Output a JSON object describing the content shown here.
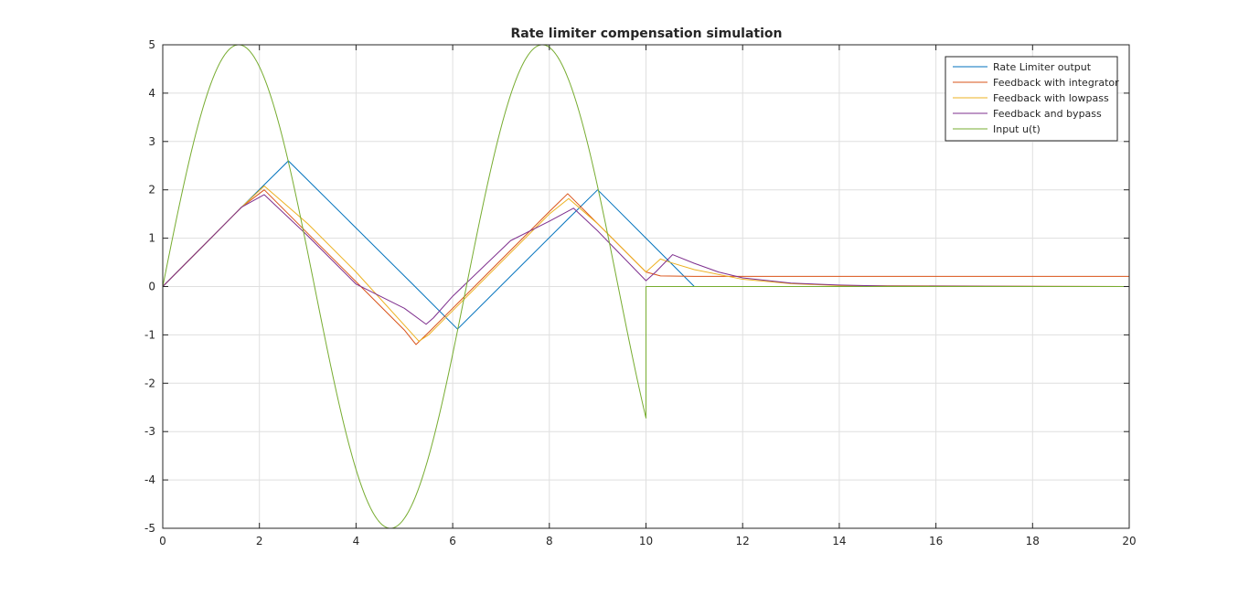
{
  "chart_data": {
    "type": "line",
    "title": "Rate limiter compensation simulation",
    "xlabel": "",
    "ylabel": "",
    "xlim": [
      0,
      20
    ],
    "ylim": [
      -5,
      5
    ],
    "grid": true,
    "legend_position": "top-right",
    "xticks": [
      0,
      2,
      4,
      6,
      8,
      10,
      12,
      14,
      16,
      18,
      20
    ],
    "yticks": [
      -5,
      -4,
      -3,
      -2,
      -1,
      0,
      1,
      2,
      3,
      4,
      5
    ],
    "series": [
      {
        "name": "Rate Limiter output",
        "color": "#0072BD",
        "x": [
          0,
          1.63,
          2.6,
          5.22,
          6.1,
          8.4,
          9.0,
          10.0,
          11.0,
          20
        ],
        "y": [
          0,
          1.64,
          2.6,
          0.0,
          -0.88,
          1.41,
          2.0,
          1.0,
          0.0,
          0.0
        ]
      },
      {
        "name": "Feedback with integrator",
        "color": "#D95319",
        "x": [
          0,
          1.63,
          2.1,
          3.0,
          4.0,
          5.0,
          5.24,
          5.5,
          6.0,
          7.0,
          8.0,
          8.38,
          9.0,
          10.0,
          10.3,
          11,
          12,
          13,
          14,
          20
        ],
        "y": [
          0,
          1.64,
          2.0,
          1.1,
          0.1,
          -0.9,
          -1.2,
          -0.95,
          -0.45,
          0.55,
          1.55,
          1.92,
          1.3,
          0.3,
          0.22,
          0.21,
          0.21,
          0.21,
          0.21,
          0.21
        ]
      },
      {
        "name": "Feedback with lowpass",
        "color": "#EDB120",
        "x": [
          0,
          1.63,
          2.1,
          3.0,
          4.0,
          5.0,
          5.3,
          5.5,
          6.0,
          7.0,
          8.0,
          8.4,
          9.0,
          10.0,
          10.3,
          10.5,
          11,
          12,
          13,
          14,
          20
        ],
        "y": [
          0,
          1.64,
          2.08,
          1.3,
          0.3,
          -0.8,
          -1.13,
          -1.0,
          -0.5,
          0.5,
          1.5,
          1.82,
          1.3,
          0.3,
          0.57,
          0.5,
          0.35,
          0.15,
          0.06,
          0.02,
          0.0
        ]
      },
      {
        "name": "Feedback and bypass",
        "color": "#7E2F8E",
        "x": [
          0,
          1.63,
          2.1,
          3.0,
          4.0,
          5.0,
          5.45,
          5.6,
          6.0,
          7.2,
          8.0,
          8.5,
          9.0,
          10.0,
          10.2,
          10.55,
          11,
          11.5,
          12,
          13,
          14,
          15,
          20
        ],
        "y": [
          0,
          1.64,
          1.9,
          1.05,
          0.05,
          -0.45,
          -0.78,
          -0.65,
          -0.2,
          0.95,
          1.35,
          1.62,
          1.15,
          0.12,
          0.3,
          0.66,
          0.48,
          0.3,
          0.18,
          0.07,
          0.03,
          0.01,
          0.0
        ]
      },
      {
        "name": "Input u(t)",
        "color": "#77AC30",
        "function": "5*sin(t) for t <= 10, 0 for t > 10",
        "x_range": [
          0,
          20
        ]
      }
    ]
  }
}
